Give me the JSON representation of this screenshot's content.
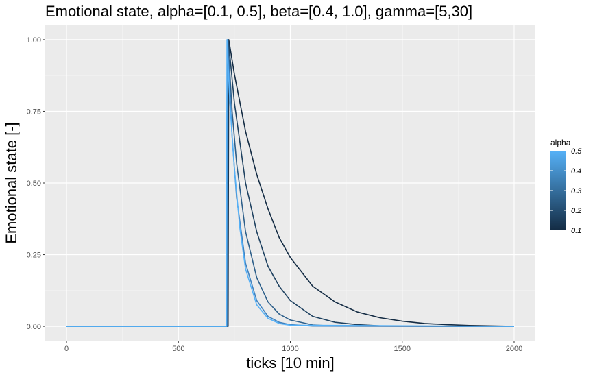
{
  "chart_data": {
    "type": "line",
    "title": "Emotional state, alpha=[0.1, 0.5], beta=[0.4, 1.0], gamma=[5,30]",
    "xlabel": "ticks [10 min]",
    "ylabel": "Emotional state [-]",
    "xlim": [
      -95,
      2095
    ],
    "ylim": [
      -0.05,
      1.05
    ],
    "x_ticks": [
      0,
      500,
      1000,
      1500,
      2000
    ],
    "x_tick_labels": [
      "0",
      "500",
      "1000",
      "1500",
      "2000"
    ],
    "y_ticks": [
      0,
      0.25,
      0.5,
      0.75,
      1.0
    ],
    "y_tick_labels": [
      "0.00",
      "0.25",
      "0.50",
      "0.75",
      "1.00"
    ],
    "grid": true,
    "legend": {
      "title": "alpha",
      "placement": "right",
      "type": "colorbar",
      "range": [
        0.1,
        0.5
      ],
      "ticks": [
        0.1,
        0.2,
        0.3,
        0.4,
        0.5
      ],
      "tick_labels": [
        "0.1",
        "0.2",
        "0.3",
        "0.4",
        "0.5"
      ],
      "color_low": "#132B43",
      "color_high": "#56B1F7"
    },
    "series": [
      {
        "alpha": 0.1,
        "color": "#132B43",
        "onset": 722,
        "x": [
          0,
          722,
          725,
          750,
          800,
          850,
          900,
          950,
          1000,
          1100,
          1200,
          1300,
          1400,
          1500,
          1600,
          1700,
          1800,
          2000
        ],
        "y": [
          0,
          0,
          1.0,
          0.88,
          0.68,
          0.53,
          0.41,
          0.31,
          0.24,
          0.14,
          0.085,
          0.05,
          0.03,
          0.018,
          0.01,
          0.006,
          0.003,
          0.0
        ]
      },
      {
        "alpha": 0.2,
        "color": "#1E4160",
        "onset": 720,
        "x": [
          0,
          720,
          723,
          750,
          800,
          850,
          900,
          950,
          1000,
          1100,
          1200,
          1300,
          1400,
          1500,
          2000
        ],
        "y": [
          0,
          0,
          1.0,
          0.78,
          0.5,
          0.33,
          0.21,
          0.14,
          0.09,
          0.035,
          0.014,
          0.006,
          0.002,
          0.001,
          0.0
        ]
      },
      {
        "alpha": 0.3,
        "color": "#2D5F8A",
        "onset": 718,
        "x": [
          0,
          718,
          721,
          740,
          760,
          800,
          850,
          900,
          950,
          1000,
          1100,
          1200,
          2000
        ],
        "y": [
          0,
          0,
          1.0,
          0.75,
          0.57,
          0.33,
          0.17,
          0.085,
          0.043,
          0.022,
          0.005,
          0.001,
          0.0
        ]
      },
      {
        "alpha": 0.4,
        "color": "#3F82C0",
        "onset": 716,
        "x": [
          0,
          716,
          719,
          740,
          760,
          800,
          850,
          900,
          950,
          1000,
          1100,
          2000
        ],
        "y": [
          0,
          0,
          1.0,
          0.66,
          0.45,
          0.22,
          0.09,
          0.035,
          0.014,
          0.006,
          0.001,
          0.0
        ]
      },
      {
        "alpha": 0.5,
        "color": "#56B1F7",
        "onset": 714,
        "x": [
          0,
          714,
          717,
          730,
          750,
          775,
          800,
          850,
          900,
          950,
          1000,
          2000
        ],
        "y": [
          0,
          0,
          1.0,
          0.78,
          0.55,
          0.34,
          0.2,
          0.075,
          0.028,
          0.01,
          0.004,
          0.0
        ]
      }
    ]
  }
}
